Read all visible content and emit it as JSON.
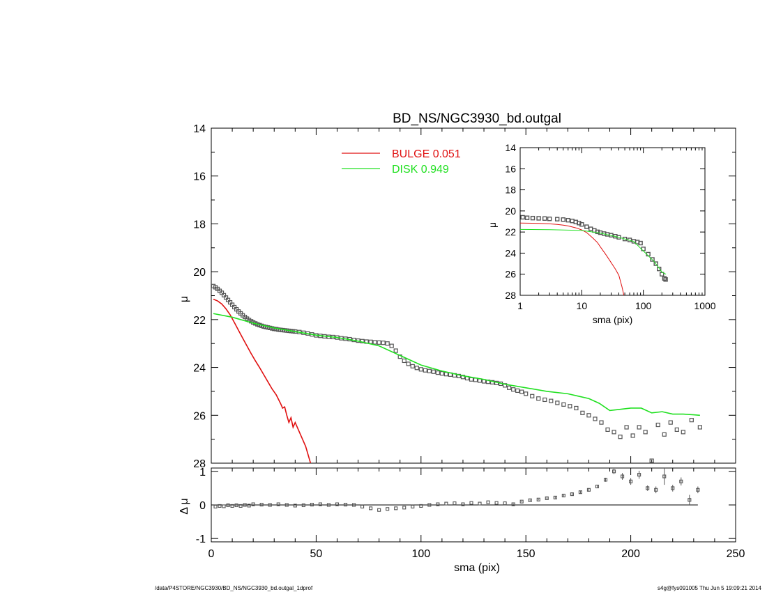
{
  "chart_data": [
    {
      "panel": "main",
      "type": "scatter",
      "title": "BD_NS/NGC3930_bd.outgal",
      "xlabel": "",
      "ylabel": "μ",
      "xlim": [
        0,
        250
      ],
      "ylim": [
        28,
        14
      ],
      "y_inverted": true,
      "xticks": [
        0,
        50,
        100,
        150,
        200,
        250
      ],
      "xticklabels": [
        "",
        "",
        "",
        "",
        "",
        ""
      ],
      "yticks": [
        14,
        16,
        18,
        20,
        22,
        24,
        26,
        28
      ],
      "yticklabels": [
        "14",
        "16",
        "18",
        "20",
        "22",
        "24",
        "26",
        "28"
      ],
      "legend": {
        "placement": "top-center",
        "entries": [
          {
            "label": "BULGE  0.051",
            "color": "#e01010"
          },
          {
            "label": "DISK  0.949",
            "color": "#20e020"
          }
        ]
      },
      "series": [
        {
          "kind": "data-points",
          "marker": "square",
          "color": "#555555",
          "x": [
            1,
            2,
            3,
            4,
            5,
            6,
            7,
            8,
            9,
            10,
            11,
            12,
            13,
            14,
            15,
            16,
            17,
            18,
            19,
            20,
            21,
            22,
            23,
            24,
            25,
            26,
            27,
            28,
            29,
            30,
            31,
            32,
            33,
            34,
            35,
            36,
            37,
            38,
            39,
            40,
            42,
            44,
            46,
            48,
            50,
            52,
            54,
            56,
            58,
            60,
            62,
            64,
            66,
            68,
            70,
            72,
            74,
            76,
            78,
            80,
            82,
            84,
            86,
            88,
            90,
            92,
            94,
            96,
            98,
            100,
            102,
            104,
            106,
            108,
            110,
            112,
            114,
            116,
            118,
            120,
            122,
            124,
            126,
            128,
            130,
            132,
            134,
            136,
            138,
            140,
            142,
            144,
            146,
            148,
            150,
            153,
            156,
            159,
            162,
            165,
            168,
            171,
            174,
            177,
            180,
            183,
            186,
            189,
            192,
            195,
            198,
            201,
            204,
            207,
            210,
            213,
            216,
            219,
            222,
            225,
            229,
            233
          ],
          "y": [
            20.6,
            20.65,
            20.72,
            20.8,
            20.88,
            20.98,
            21.08,
            21.18,
            21.28,
            21.38,
            21.48,
            21.57,
            21.66,
            21.74,
            21.82,
            21.89,
            21.96,
            22.02,
            22.07,
            22.12,
            22.16,
            22.2,
            22.23,
            22.26,
            22.29,
            22.31,
            22.33,
            22.35,
            22.37,
            22.39,
            22.4,
            22.42,
            22.43,
            22.44,
            22.45,
            22.46,
            22.47,
            22.48,
            22.49,
            22.5,
            22.52,
            22.55,
            22.58,
            22.62,
            22.66,
            22.68,
            22.7,
            22.72,
            22.73,
            22.75,
            22.78,
            22.8,
            22.82,
            22.85,
            22.88,
            22.9,
            22.92,
            22.93,
            22.95,
            22.96,
            22.97,
            23.0,
            23.1,
            23.3,
            23.55,
            23.72,
            23.85,
            23.95,
            24.02,
            24.08,
            24.12,
            24.15,
            24.18,
            24.22,
            24.25,
            24.28,
            24.3,
            24.33,
            24.36,
            24.4,
            24.45,
            24.5,
            24.52,
            24.55,
            24.58,
            24.6,
            24.62,
            24.65,
            24.68,
            24.75,
            24.85,
            24.92,
            24.97,
            25.02,
            25.1,
            25.2,
            25.3,
            25.35,
            25.4,
            25.48,
            25.55,
            25.62,
            25.7,
            25.9,
            26.0,
            26.15,
            26.3,
            26.6,
            26.7,
            26.9,
            26.5,
            26.85,
            26.5,
            26.7,
            27.9,
            26.4,
            26.8,
            26.3,
            26.6,
            26.7,
            26.2,
            26.5
          ]
        },
        {
          "kind": "model",
          "name": "BULGE  0.051",
          "color": "#e01010",
          "x": [
            1,
            3,
            5,
            7,
            9,
            11,
            13,
            15,
            17,
            19,
            21,
            23,
            25,
            27,
            29,
            31,
            33,
            34,
            35,
            36,
            37,
            38,
            39,
            40,
            41,
            42,
            43,
            44,
            45,
            46,
            47,
            48,
            49,
            50
          ],
          "y": [
            21.15,
            21.22,
            21.35,
            21.55,
            21.8,
            22.12,
            22.45,
            22.78,
            23.1,
            23.42,
            23.72,
            24.0,
            24.3,
            24.6,
            24.9,
            25.15,
            25.5,
            25.7,
            25.65,
            26.0,
            26.3,
            26.1,
            26.5,
            26.3,
            26.5,
            26.7,
            26.9,
            27.1,
            27.3,
            27.6,
            27.9,
            28.2,
            28.5,
            28.9
          ]
        },
        {
          "kind": "model",
          "name": "DISK  0.949",
          "color": "#20e020",
          "x": [
            1,
            10,
            20,
            30,
            40,
            50,
            60,
            70,
            80,
            90,
            100,
            110,
            120,
            130,
            140,
            150,
            160,
            170,
            175,
            180,
            185,
            190,
            195,
            200,
            205,
            210,
            215,
            220,
            225,
            230,
            233
          ],
          "y": [
            21.75,
            21.9,
            22.15,
            22.35,
            22.5,
            22.65,
            22.75,
            22.9,
            23.1,
            23.5,
            23.9,
            24.15,
            24.35,
            24.5,
            24.7,
            24.85,
            25.0,
            25.1,
            25.2,
            25.3,
            25.5,
            25.8,
            25.75,
            25.7,
            25.7,
            25.9,
            25.85,
            25.95,
            25.95,
            25.98,
            26.0
          ]
        }
      ]
    },
    {
      "panel": "inset",
      "type": "scatter",
      "xlabel": "sma (pix)",
      "ylabel": "μ",
      "x_scale": "log",
      "xlim": [
        1,
        1000
      ],
      "ylim": [
        28,
        14
      ],
      "y_inverted": true,
      "xticks": [
        1,
        10,
        100,
        1000
      ],
      "xticklabels": [
        "1",
        "10",
        "100",
        "1000"
      ],
      "yticks": [
        14,
        16,
        18,
        20,
        22,
        24,
        26,
        28
      ],
      "yticklabels": [
        "14",
        "16",
        "18",
        "20",
        "22",
        "24",
        "26",
        "28"
      ],
      "series": [
        {
          "kind": "data-points",
          "color": "#555555",
          "x": [
            1.1,
            1.3,
            1.6,
            2,
            2.5,
            3,
            4,
            5,
            6,
            7,
            8,
            9,
            10,
            12,
            14,
            16,
            18,
            20,
            23,
            26,
            30,
            35,
            40,
            50,
            60,
            70,
            80,
            90,
            100,
            120,
            140,
            160,
            180,
            200,
            220,
            230
          ],
          "y": [
            20.6,
            20.65,
            20.68,
            20.7,
            20.72,
            20.75,
            20.78,
            20.82,
            20.88,
            20.95,
            21.05,
            21.15,
            21.28,
            21.5,
            21.7,
            21.85,
            21.98,
            22.06,
            22.15,
            22.22,
            22.3,
            22.4,
            22.5,
            22.66,
            22.75,
            22.88,
            22.95,
            23.05,
            23.6,
            24.1,
            24.6,
            25.0,
            25.5,
            26.0,
            26.4,
            26.5
          ]
        },
        {
          "kind": "model",
          "name": "BULGE",
          "color": "#e01010",
          "x": [
            1,
            2,
            3,
            4,
            5,
            6,
            8,
            10,
            12,
            15,
            18,
            20,
            25,
            30,
            35,
            40,
            45,
            50
          ],
          "y": [
            21.15,
            21.18,
            21.22,
            21.28,
            21.35,
            21.42,
            21.6,
            21.8,
            22.05,
            22.55,
            23.0,
            23.4,
            24.2,
            24.9,
            25.5,
            26.1,
            27.2,
            28.4
          ]
        },
        {
          "kind": "model",
          "name": "DISK",
          "color": "#20e020",
          "x": [
            1,
            3,
            10,
            20,
            40,
            70,
            100,
            150,
            200,
            233
          ],
          "y": [
            21.75,
            21.78,
            21.85,
            22.1,
            22.5,
            22.9,
            23.8,
            24.8,
            25.8,
            26.0
          ]
        }
      ]
    },
    {
      "panel": "residual",
      "type": "scatter",
      "xlabel": "sma (pix)",
      "ylabel": "Δ μ",
      "xlim": [
        0,
        250
      ],
      "ylim": [
        -1.1,
        1.1
      ],
      "xticks": [
        0,
        50,
        100,
        150,
        200,
        250
      ],
      "xticklabels": [
        "0",
        "50",
        "100",
        "150",
        "200",
        "250"
      ],
      "yticks": [
        -1,
        0,
        1
      ],
      "yticklabels": [
        "-1",
        "0",
        "1"
      ],
      "zero_line": true,
      "series": [
        {
          "kind": "residuals",
          "color": "#555555",
          "x": [
            2,
            4,
            6,
            8,
            10,
            12,
            14,
            16,
            18,
            20,
            24,
            28,
            32,
            36,
            40,
            44,
            48,
            52,
            56,
            60,
            64,
            68,
            72,
            76,
            80,
            84,
            88,
            92,
            96,
            100,
            104,
            108,
            112,
            116,
            120,
            124,
            128,
            132,
            136,
            140,
            144,
            148,
            152,
            156,
            160,
            164,
            168,
            172,
            176,
            180,
            184,
            188,
            192,
            196,
            200,
            204,
            208,
            212,
            216,
            220,
            224,
            228,
            232
          ],
          "y": [
            -0.05,
            -0.03,
            -0.04,
            -0.01,
            -0.03,
            -0.01,
            -0.03,
            0.0,
            -0.02,
            0.02,
            0.01,
            0.0,
            0.02,
            0.0,
            -0.02,
            -0.01,
            0.01,
            0.02,
            0.0,
            0.02,
            0.01,
            0.0,
            -0.05,
            -0.1,
            -0.15,
            -0.12,
            -0.1,
            -0.08,
            -0.05,
            -0.03,
            0.0,
            0.02,
            0.04,
            0.05,
            0.02,
            0.06,
            0.04,
            0.08,
            0.06,
            0.05,
            0.02,
            0.1,
            0.14,
            0.16,
            0.2,
            0.22,
            0.28,
            0.32,
            0.38,
            0.45,
            0.55,
            0.75,
            1.0,
            0.85,
            0.7,
            0.9,
            0.5,
            0.45,
            0.85,
            0.5,
            0.7,
            0.15,
            0.45
          ],
          "err": [
            0.01,
            0.01,
            0.01,
            0.01,
            0.01,
            0.01,
            0.01,
            0.01,
            0.01,
            0.01,
            0.01,
            0.01,
            0.01,
            0.01,
            0.01,
            0.01,
            0.01,
            0.01,
            0.01,
            0.01,
            0.01,
            0.01,
            0.01,
            0.01,
            0.01,
            0.01,
            0.01,
            0.01,
            0.01,
            0.01,
            0.01,
            0.01,
            0.01,
            0.01,
            0.01,
            0.01,
            0.01,
            0.01,
            0.01,
            0.01,
            0.02,
            0.02,
            0.02,
            0.02,
            0.03,
            0.03,
            0.03,
            0.04,
            0.04,
            0.05,
            0.05,
            0.06,
            0.08,
            0.1,
            0.1,
            0.12,
            0.08,
            0.1,
            0.25,
            0.1,
            0.12,
            0.15,
            0.1
          ]
        }
      ]
    }
  ],
  "footer": {
    "left": "/data/P4STORE/NGC3930/BD_NS/NGC3930_bd.outgal_1dprof",
    "right": "s4g@fys091005  Thu Jun  5 19:09:21 2014"
  }
}
